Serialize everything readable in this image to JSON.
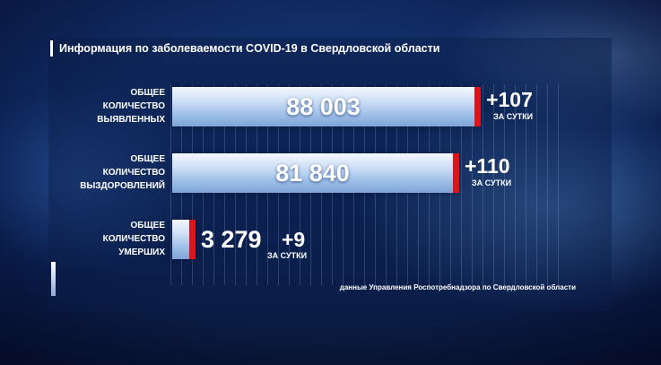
{
  "title": "Информация по заболеваемости COVID-19 в Свердловской области",
  "source": "данные Управления Роспотребнадзора по Свердловской области",
  "chart_data": {
    "type": "bar",
    "orientation": "horizontal",
    "categories": [
      [
        "ОБЩЕЕ",
        "КОЛИЧЕСТВО",
        "ВЫЯВЛЕННЫХ"
      ],
      [
        "ОБЩЕЕ",
        "КОЛИЧЕСТВО",
        "ВЫЗДОРОВЛЕНИЙ"
      ],
      [
        "ОБЩЕЕ",
        "КОЛИЧЕСТВО",
        "УМЕРШИХ"
      ]
    ],
    "values": [
      88003,
      81840,
      3279
    ],
    "value_labels": [
      "88 003",
      "81 840",
      "3 279"
    ],
    "deltas": [
      "+107",
      "+110",
      "+9"
    ],
    "delta_caption": "ЗА СУТКИ",
    "title": "Информация по заболеваемости COVID-19 в Свердловской области",
    "xlim": [
      0,
      100000
    ],
    "colors": {
      "bar": "#cfe0f6",
      "cap": "#e0131b"
    }
  }
}
